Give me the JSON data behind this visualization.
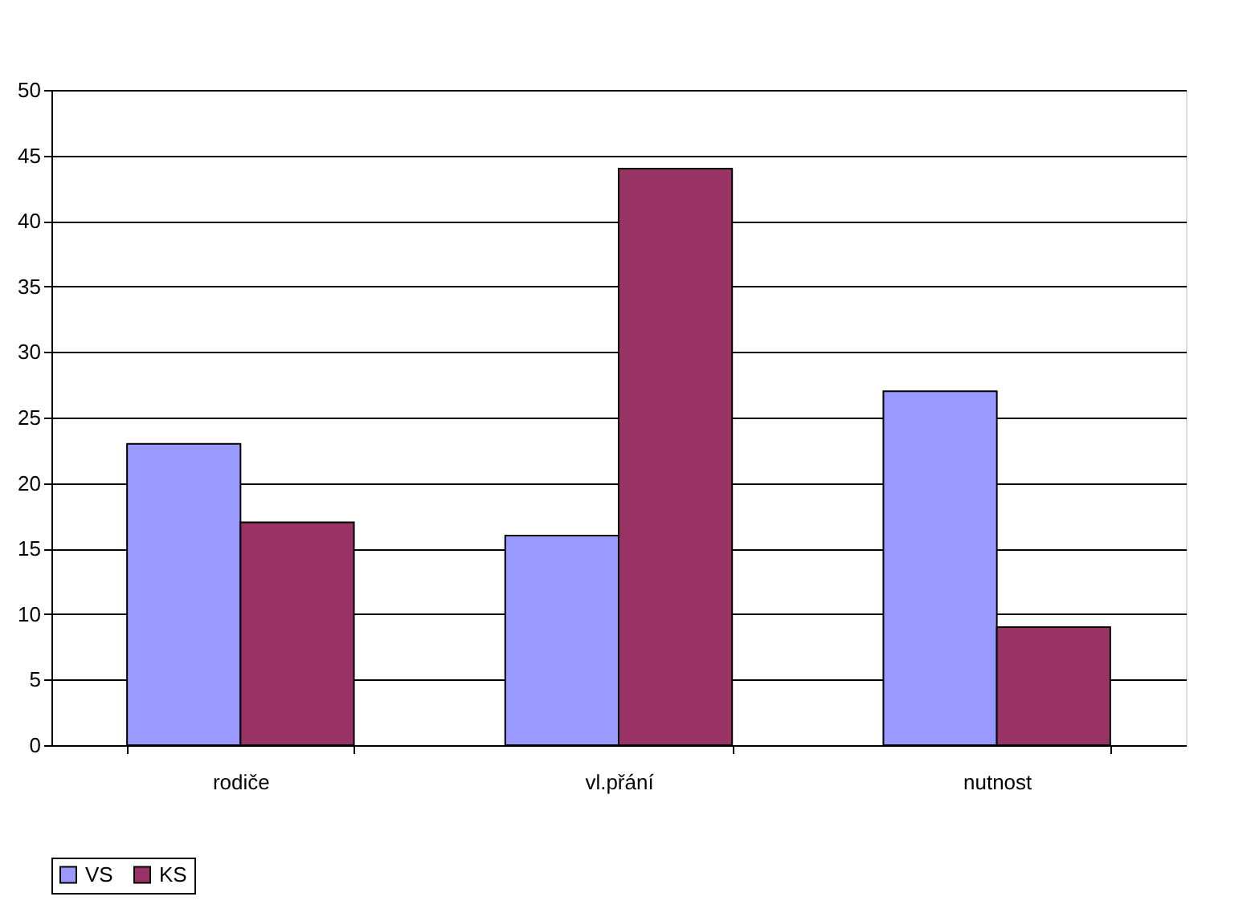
{
  "chart_data": {
    "type": "bar",
    "categories": [
      "rodiče",
      "vl.přání",
      "nutnost"
    ],
    "series": [
      {
        "name": "VS",
        "color": "#9999ff",
        "values": [
          23,
          16,
          27
        ]
      },
      {
        "name": "KS",
        "color": "#993366",
        "values": [
          17,
          44,
          9
        ]
      }
    ],
    "ylim": [
      0,
      50
    ],
    "yticks": [
      0,
      5,
      10,
      15,
      20,
      25,
      30,
      35,
      40,
      45,
      50
    ],
    "grid": "y",
    "legend": "bottom"
  }
}
